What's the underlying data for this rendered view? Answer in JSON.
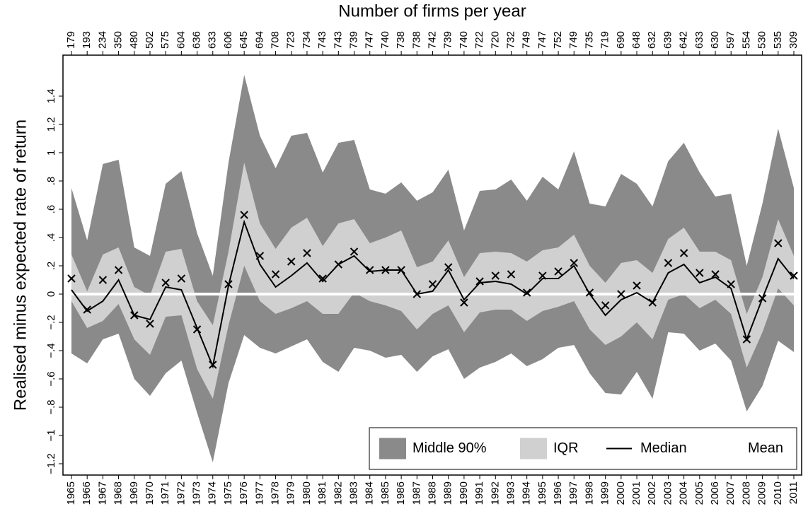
{
  "chart_data": {
    "type": "band",
    "top_axis_title": "Number of firms per year",
    "y_label": "Realised minus expected rate of return",
    "categories": [
      "1965",
      "1966",
      "1967",
      "1968",
      "1969",
      "1970",
      "1971",
      "1972",
      "1973",
      "1974",
      "1975",
      "1976",
      "1977",
      "1978",
      "1979",
      "1980",
      "1981",
      "1982",
      "1983",
      "1984",
      "1985",
      "1986",
      "1987",
      "1988",
      "1989",
      "1990",
      "1991",
      "1992",
      "1993",
      "1994",
      "1995",
      "1996",
      "1997",
      "1998",
      "1999",
      "2000",
      "2001",
      "2002",
      "2003",
      "2004",
      "2005",
      "2006",
      "2007",
      "2008",
      "2009",
      "2010",
      "2011"
    ],
    "firms": [
      179,
      193,
      234,
      350,
      480,
      502,
      575,
      604,
      636,
      633,
      606,
      645,
      694,
      708,
      723,
      734,
      743,
      743,
      739,
      747,
      740,
      738,
      738,
      742,
      739,
      740,
      722,
      720,
      732,
      749,
      747,
      752,
      749,
      735,
      719,
      690,
      648,
      632,
      639,
      642,
      633,
      630,
      597,
      554,
      530,
      535,
      309
    ],
    "series": [
      {
        "name": "Middle 90%",
        "color": "#8a8a8a",
        "lower": [
          -0.42,
          -0.49,
          -0.32,
          -0.28,
          -0.6,
          -0.72,
          -0.56,
          -0.47,
          -0.84,
          -1.19,
          -0.63,
          -0.29,
          -0.38,
          -0.42,
          -0.37,
          -0.32,
          -0.48,
          -0.55,
          -0.38,
          -0.4,
          -0.45,
          -0.43,
          -0.55,
          -0.44,
          -0.39,
          -0.6,
          -0.52,
          -0.48,
          -0.42,
          -0.51,
          -0.46,
          -0.38,
          -0.36,
          -0.56,
          -0.7,
          -0.71,
          -0.55,
          -0.74,
          -0.27,
          -0.28,
          -0.4,
          -0.35,
          -0.47,
          -0.83,
          -0.65,
          -0.33,
          -0.41
        ],
        "upper": [
          0.75,
          0.38,
          0.92,
          0.95,
          0.33,
          0.27,
          0.78,
          0.87,
          0.43,
          0.13,
          0.93,
          1.55,
          1.12,
          0.89,
          1.12,
          1.14,
          0.86,
          1.07,
          1.09,
          0.74,
          0.71,
          0.79,
          0.66,
          0.72,
          0.88,
          0.45,
          0.73,
          0.74,
          0.81,
          0.66,
          0.83,
          0.74,
          1.01,
          0.64,
          0.62,
          0.85,
          0.78,
          0.62,
          0.94,
          1.07,
          0.86,
          0.69,
          0.71,
          0.2,
          0.64,
          1.17,
          0.75
        ]
      },
      {
        "name": "IQR",
        "color": "#d0d0d0",
        "lower": [
          -0.05,
          -0.24,
          -0.19,
          -0.07,
          -0.32,
          -0.43,
          -0.16,
          -0.15,
          -0.53,
          -0.74,
          -0.22,
          0.2,
          -0.05,
          -0.14,
          -0.1,
          -0.05,
          -0.14,
          -0.14,
          0.01,
          -0.05,
          -0.08,
          -0.12,
          -0.25,
          -0.14,
          -0.08,
          -0.27,
          -0.13,
          -0.11,
          -0.11,
          -0.19,
          -0.12,
          -0.09,
          -0.05,
          -0.25,
          -0.36,
          -0.3,
          -0.2,
          -0.32,
          -0.04,
          0.0,
          -0.1,
          -0.04,
          -0.14,
          -0.52,
          -0.27,
          0.04,
          -0.08
        ],
        "upper": [
          0.28,
          0.02,
          0.28,
          0.33,
          0.05,
          -0.01,
          0.3,
          0.32,
          -0.05,
          -0.22,
          0.3,
          0.93,
          0.5,
          0.32,
          0.47,
          0.54,
          0.34,
          0.5,
          0.53,
          0.36,
          0.4,
          0.45,
          0.19,
          0.23,
          0.38,
          0.12,
          0.29,
          0.3,
          0.29,
          0.23,
          0.31,
          0.33,
          0.42,
          0.2,
          0.08,
          0.22,
          0.24,
          0.15,
          0.39,
          0.47,
          0.3,
          0.3,
          0.24,
          -0.14,
          0.12,
          0.53,
          0.27
        ]
      },
      {
        "name": "Median",
        "color": "#000000",
        "values": [
          0.03,
          -0.12,
          -0.05,
          0.1,
          -0.15,
          -0.18,
          0.05,
          0.03,
          -0.24,
          -0.51,
          0.06,
          0.51,
          0.21,
          0.05,
          0.13,
          0.22,
          0.09,
          0.21,
          0.27,
          0.16,
          0.17,
          0.17,
          0.0,
          0.02,
          0.17,
          -0.04,
          0.08,
          0.09,
          0.07,
          0.0,
          0.11,
          0.11,
          0.2,
          0.0,
          -0.15,
          -0.04,
          0.01,
          -0.06,
          0.15,
          0.21,
          0.08,
          0.12,
          0.04,
          -0.32,
          -0.03,
          0.25,
          0.11
        ]
      },
      {
        "name": "Mean",
        "color": "#000000",
        "marker": "x",
        "values": [
          0.11,
          -0.11,
          0.1,
          0.17,
          -0.15,
          -0.21,
          0.08,
          0.11,
          -0.25,
          -0.5,
          0.07,
          0.56,
          0.27,
          0.14,
          0.23,
          0.29,
          0.11,
          0.21,
          0.3,
          0.17,
          0.17,
          0.17,
          0.0,
          0.07,
          0.19,
          -0.06,
          0.09,
          0.13,
          0.14,
          0.01,
          0.13,
          0.16,
          0.22,
          0.01,
          -0.08,
          0.0,
          0.06,
          -0.06,
          0.22,
          0.29,
          0.15,
          0.14,
          0.07,
          -0.32,
          -0.03,
          0.36,
          0.13
        ]
      }
    ],
    "reference_line": {
      "value": 0,
      "color": "#ffffff"
    },
    "ylim": [
      -1.28,
      1.69
    ],
    "yticks": [
      {
        "value": -1.2,
        "label": "−1.2"
      },
      {
        "value": -1,
        "label": "−1"
      },
      {
        "value": -0.8,
        "label": "−.8"
      },
      {
        "value": -0.6,
        "label": "−.6"
      },
      {
        "value": -0.4,
        "label": "−.4"
      },
      {
        "value": -0.2,
        "label": "−.2"
      },
      0,
      {
        "value": 0.2,
        "label": ".2"
      },
      {
        "value": 0.4,
        "label": ".4"
      },
      {
        "value": 0.6,
        "label": ".6"
      },
      {
        "value": 0.8,
        "label": ".8"
      },
      1,
      1.2,
      1.4
    ],
    "legend_position": "bottom-right"
  }
}
